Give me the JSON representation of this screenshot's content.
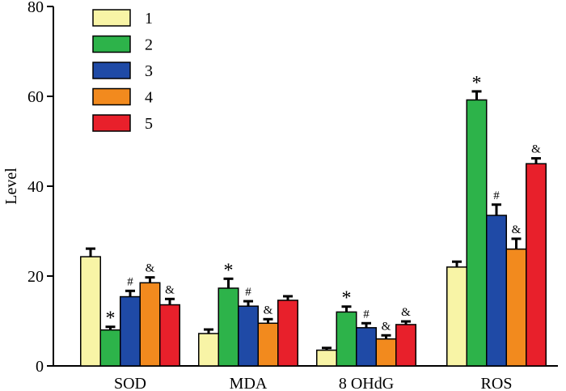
{
  "chart_data": {
    "type": "bar",
    "ylabel": "Level",
    "xlabel": "",
    "ylim": [
      0,
      80
    ],
    "yticks": [
      0,
      20,
      40,
      60,
      80
    ],
    "grid": false,
    "legend_position": "top-left",
    "categories": [
      "SOD",
      "MDA",
      "8 OHdG",
      "ROS"
    ],
    "series": [
      {
        "name": "1",
        "color": "#f8f4a6",
        "values": [
          24.3,
          7.2,
          3.5,
          22.0
        ],
        "errors": [
          1.8,
          0.9,
          0.5,
          1.2
        ],
        "markers": [
          "",
          "",
          "",
          ""
        ]
      },
      {
        "name": "2",
        "color": "#2db34a",
        "values": [
          8.0,
          17.3,
          12.0,
          59.2
        ],
        "errors": [
          0.7,
          2.1,
          1.2,
          1.9
        ],
        "markers": [
          "*",
          "*",
          "*",
          "*"
        ]
      },
      {
        "name": "3",
        "color": "#1f4aa6",
        "values": [
          15.4,
          13.3,
          8.5,
          33.5
        ],
        "errors": [
          1.3,
          1.1,
          1.0,
          2.4
        ],
        "markers": [
          "#",
          "#",
          "#",
          "#"
        ]
      },
      {
        "name": "4",
        "color": "#f28a1e",
        "values": [
          18.5,
          9.5,
          6.0,
          26.0
        ],
        "errors": [
          1.2,
          0.9,
          0.8,
          2.3
        ],
        "markers": [
          "&",
          "&",
          "&",
          "&"
        ]
      },
      {
        "name": "5",
        "color": "#e8202b",
        "values": [
          13.6,
          14.6,
          9.2,
          45.0
        ],
        "errors": [
          1.3,
          0.9,
          0.7,
          1.2
        ],
        "markers": [
          "&",
          "",
          "&",
          "&"
        ]
      }
    ]
  }
}
